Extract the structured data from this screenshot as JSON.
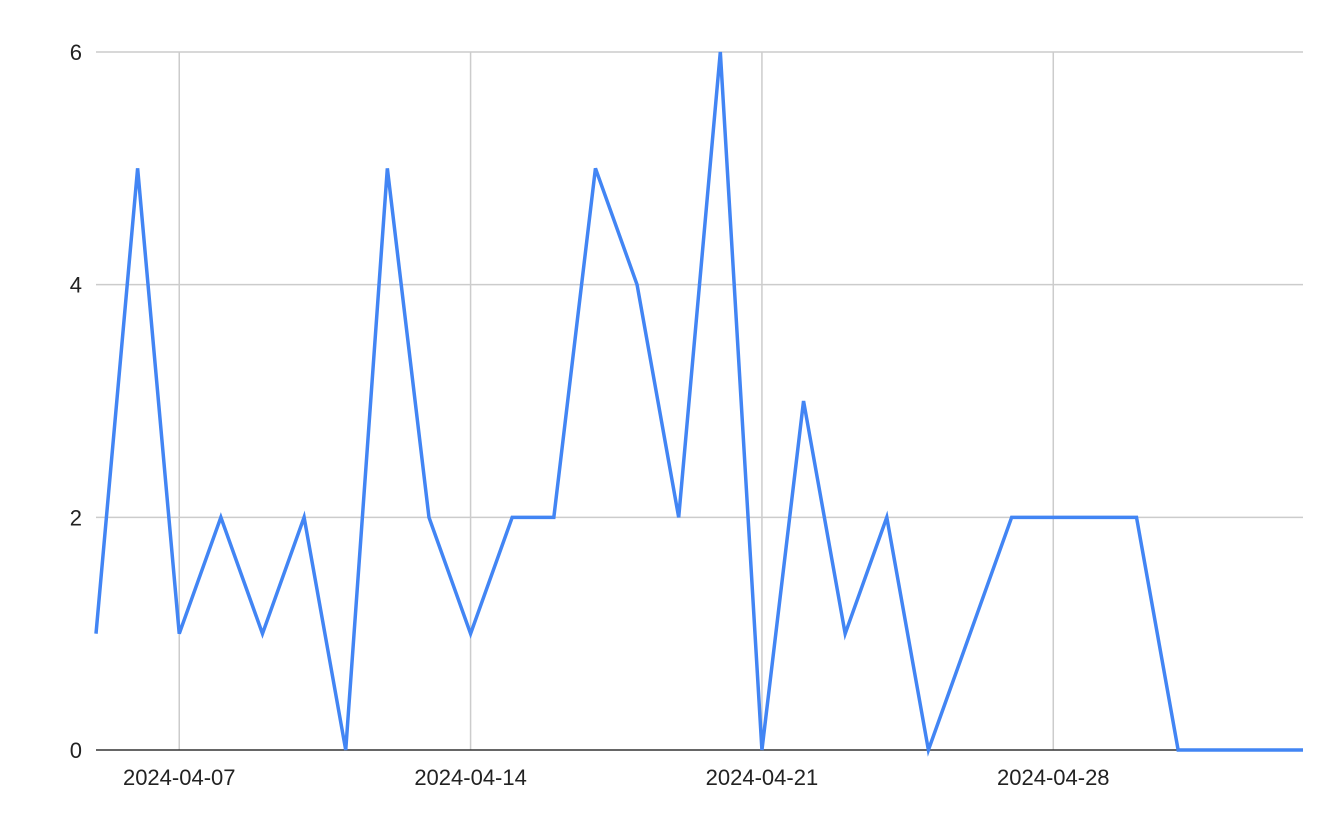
{
  "chart_data": {
    "type": "line",
    "title": "",
    "xlabel": "",
    "ylabel": "",
    "x": [
      "2024-04-05",
      "2024-04-06",
      "2024-04-07",
      "2024-04-08",
      "2024-04-09",
      "2024-04-10",
      "2024-04-11",
      "2024-04-12",
      "2024-04-13",
      "2024-04-14",
      "2024-04-15",
      "2024-04-16",
      "2024-04-17",
      "2024-04-18",
      "2024-04-19",
      "2024-04-20",
      "2024-04-21",
      "2024-04-22",
      "2024-04-23",
      "2024-04-24",
      "2024-04-25",
      "2024-04-26",
      "2024-04-27",
      "2024-04-28",
      "2024-04-29",
      "2024-04-30",
      "2024-05-01",
      "2024-05-02",
      "2024-05-03",
      "2024-05-04"
    ],
    "series": [
      {
        "values": [
          1,
          5,
          1,
          2,
          1,
          2,
          0,
          5,
          2,
          1,
          2,
          2,
          5,
          4,
          2,
          6,
          0,
          3,
          1,
          2,
          0,
          1,
          2,
          2,
          2,
          2,
          0,
          0,
          0,
          0
        ],
        "color": "#4285f4"
      }
    ],
    "xlim": [
      "2024-04-05",
      "2024-05-04"
    ],
    "ylim": [
      0,
      6
    ],
    "x_ticks": [
      "2024-04-07",
      "2024-04-14",
      "2024-04-21",
      "2024-04-28"
    ],
    "y_ticks": [
      "0",
      "2",
      "4",
      "6"
    ],
    "grid": true,
    "legend": "none"
  }
}
